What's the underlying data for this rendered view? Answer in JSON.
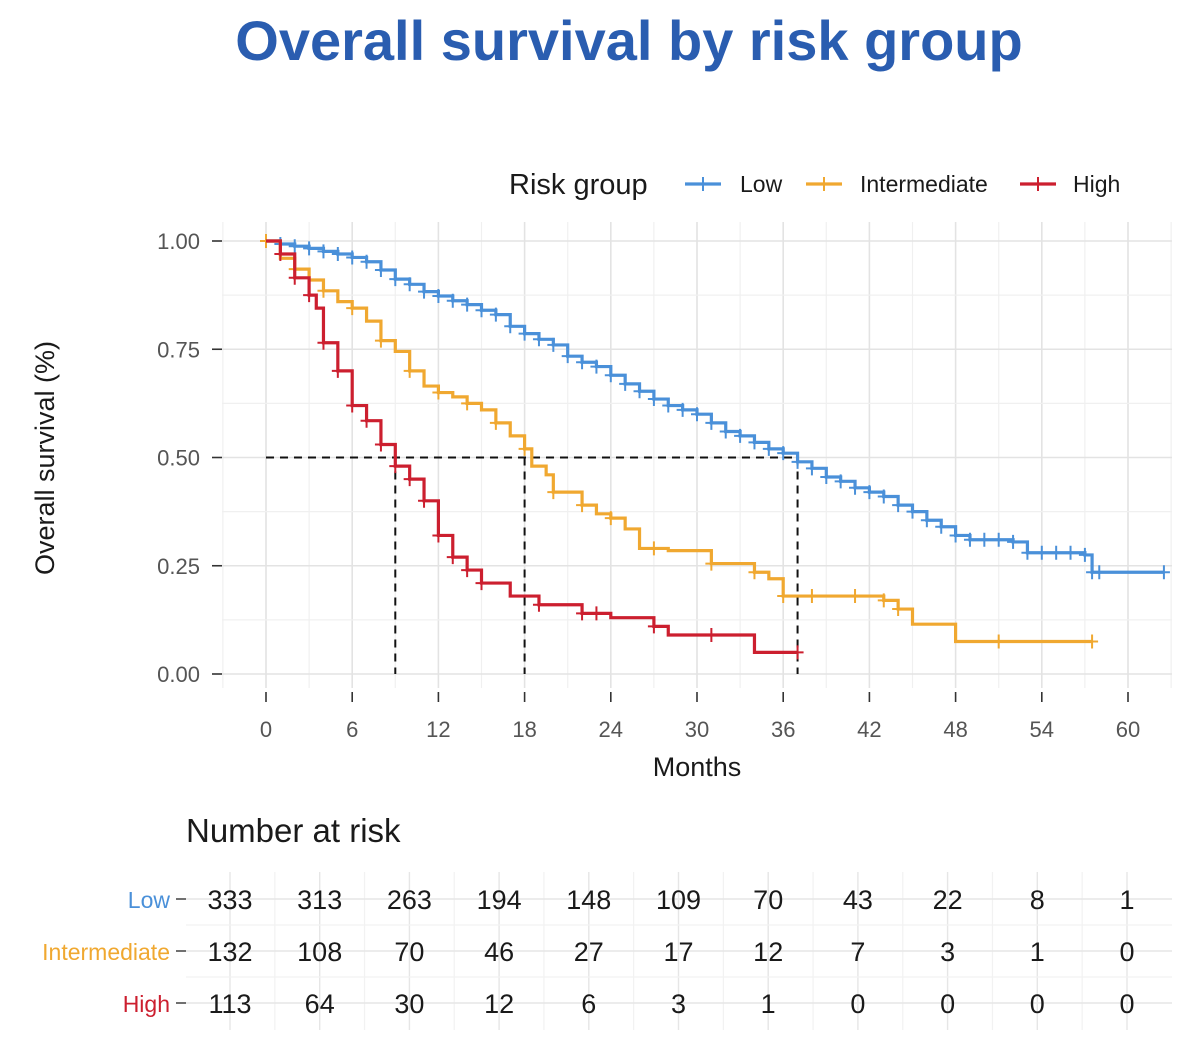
{
  "title": "Overall survival by risk group",
  "chart_data": {
    "type": "line",
    "subtype": "kaplan-meier step",
    "xlabel": "Months",
    "ylabel": "Overall survival (%)",
    "xlim": [
      0,
      60
    ],
    "ylim": [
      0,
      1
    ],
    "x_ticks": [
      "0",
      "6",
      "12",
      "18",
      "24",
      "30",
      "36",
      "42",
      "48",
      "54",
      "60"
    ],
    "y_ticks": [
      "0.00",
      "0.25",
      "0.50",
      "0.75",
      "1.00"
    ],
    "grid": true,
    "legend": {
      "title": "Risk group",
      "placement": "top-right"
    },
    "medians": [
      {
        "series": "High",
        "x": 9
      },
      {
        "series": "Intermediate",
        "x": 18
      },
      {
        "series": "Low",
        "x": 37
      }
    ],
    "median_y": 0.5,
    "series": [
      {
        "name": "Low",
        "color": "#4a90d9",
        "steps": [
          [
            0,
            1.0
          ],
          [
            1,
            0.993
          ],
          [
            2,
            0.988
          ],
          [
            3,
            0.983
          ],
          [
            4,
            0.976
          ],
          [
            5,
            0.97
          ],
          [
            6,
            0.962
          ],
          [
            7,
            0.952
          ],
          [
            8,
            0.933
          ],
          [
            9,
            0.912
          ],
          [
            10,
            0.9
          ],
          [
            11,
            0.883
          ],
          [
            12,
            0.873
          ],
          [
            13,
            0.862
          ],
          [
            14,
            0.853
          ],
          [
            15,
            0.84
          ],
          [
            16,
            0.83
          ],
          [
            17,
            0.803
          ],
          [
            18,
            0.786
          ],
          [
            19,
            0.773
          ],
          [
            20,
            0.76
          ],
          [
            21,
            0.734
          ],
          [
            22,
            0.72
          ],
          [
            23,
            0.71
          ],
          [
            24,
            0.69
          ],
          [
            25,
            0.67
          ],
          [
            26,
            0.653
          ],
          [
            27,
            0.635
          ],
          [
            28,
            0.62
          ],
          [
            29,
            0.61
          ],
          [
            30,
            0.6
          ],
          [
            31,
            0.58
          ],
          [
            32,
            0.56
          ],
          [
            33,
            0.55
          ],
          [
            34,
            0.535
          ],
          [
            35,
            0.52
          ],
          [
            36,
            0.51
          ],
          [
            37,
            0.49
          ],
          [
            38,
            0.475
          ],
          [
            39,
            0.455
          ],
          [
            40,
            0.445
          ],
          [
            41,
            0.43
          ],
          [
            42,
            0.42
          ],
          [
            43,
            0.41
          ],
          [
            44,
            0.39
          ],
          [
            45,
            0.375
          ],
          [
            46,
            0.355
          ],
          [
            47,
            0.34
          ],
          [
            48,
            0.32
          ],
          [
            49,
            0.31
          ],
          [
            52,
            0.305
          ],
          [
            53,
            0.28
          ],
          [
            57,
            0.275
          ],
          [
            57.5,
            0.235
          ],
          [
            62.5,
            0.235
          ]
        ],
        "censor_x": [
          1,
          2,
          3,
          4,
          5,
          6,
          7,
          8,
          9,
          10,
          11,
          12,
          13,
          14,
          15,
          16,
          17,
          18,
          19,
          20,
          21,
          22,
          23,
          24,
          25,
          26,
          27,
          28,
          29,
          30,
          31,
          32,
          33,
          34,
          35,
          36,
          37,
          38,
          39,
          40,
          41,
          42,
          43,
          44,
          45,
          46,
          47,
          48,
          49,
          50,
          51,
          52,
          53,
          54,
          55,
          56,
          57,
          57.5,
          58,
          62.5
        ]
      },
      {
        "name": "Intermediate",
        "color": "#f0a830",
        "steps": [
          [
            0,
            1.0
          ],
          [
            1,
            0.96
          ],
          [
            2,
            0.935
          ],
          [
            3,
            0.91
          ],
          [
            4,
            0.885
          ],
          [
            5,
            0.86
          ],
          [
            6,
            0.845
          ],
          [
            7,
            0.815
          ],
          [
            8,
            0.77
          ],
          [
            9,
            0.745
          ],
          [
            10,
            0.7
          ],
          [
            11,
            0.665
          ],
          [
            12,
            0.65
          ],
          [
            13,
            0.64
          ],
          [
            14,
            0.625
          ],
          [
            15,
            0.61
          ],
          [
            16,
            0.58
          ],
          [
            17,
            0.55
          ],
          [
            18,
            0.52
          ],
          [
            18.5,
            0.48
          ],
          [
            19.5,
            0.46
          ],
          [
            20,
            0.42
          ],
          [
            22,
            0.39
          ],
          [
            23,
            0.37
          ],
          [
            24,
            0.36
          ],
          [
            25,
            0.335
          ],
          [
            26,
            0.29
          ],
          [
            28,
            0.285
          ],
          [
            31,
            0.255
          ],
          [
            34,
            0.235
          ],
          [
            35,
            0.22
          ],
          [
            36,
            0.18
          ],
          [
            43,
            0.17
          ],
          [
            44,
            0.15
          ],
          [
            45,
            0.115
          ],
          [
            48,
            0.075
          ],
          [
            57.5,
            0.075
          ]
        ],
        "censor_x": [
          0,
          2,
          4,
          6,
          8,
          10,
          12,
          14,
          16,
          18,
          20,
          22,
          24,
          27,
          31,
          34,
          36,
          38,
          41,
          43,
          44,
          51,
          57.5
        ]
      },
      {
        "name": "High",
        "color": "#cc1f2f",
        "steps": [
          [
            0,
            1.0
          ],
          [
            1,
            0.97
          ],
          [
            2,
            0.915
          ],
          [
            3,
            0.875
          ],
          [
            3.5,
            0.845
          ],
          [
            4,
            0.765
          ],
          [
            5,
            0.7
          ],
          [
            6,
            0.62
          ],
          [
            7,
            0.585
          ],
          [
            8,
            0.53
          ],
          [
            9,
            0.48
          ],
          [
            10,
            0.45
          ],
          [
            11,
            0.4
          ],
          [
            12,
            0.32
          ],
          [
            13,
            0.27
          ],
          [
            14,
            0.24
          ],
          [
            15,
            0.21
          ],
          [
            17,
            0.18
          ],
          [
            19,
            0.16
          ],
          [
            22,
            0.14
          ],
          [
            24,
            0.13
          ],
          [
            27,
            0.11
          ],
          [
            28,
            0.09
          ],
          [
            34,
            0.05
          ],
          [
            37,
            0.05
          ]
        ],
        "censor_x": [
          1,
          2,
          3,
          4,
          5,
          6,
          7,
          8,
          9,
          10,
          11,
          12,
          13,
          14,
          15,
          19,
          22,
          23,
          27,
          31,
          37
        ]
      }
    ]
  },
  "risk_table": {
    "title": "Number at risk",
    "rows": [
      {
        "label": "Low",
        "color": "#4a90d9",
        "values": [
          "333",
          "313",
          "263",
          "194",
          "148",
          "109",
          "70",
          "43",
          "22",
          "8",
          "1"
        ]
      },
      {
        "label": "Intermediate",
        "color": "#f0a830",
        "values": [
          "132",
          "108",
          "70",
          "46",
          "27",
          "17",
          "12",
          "7",
          "3",
          "1",
          "0"
        ]
      },
      {
        "label": "High",
        "color": "#cc1f2f",
        "values": [
          "113",
          "64",
          "30",
          "12",
          "6",
          "3",
          "1",
          "0",
          "0",
          "0",
          "0"
        ]
      }
    ]
  }
}
